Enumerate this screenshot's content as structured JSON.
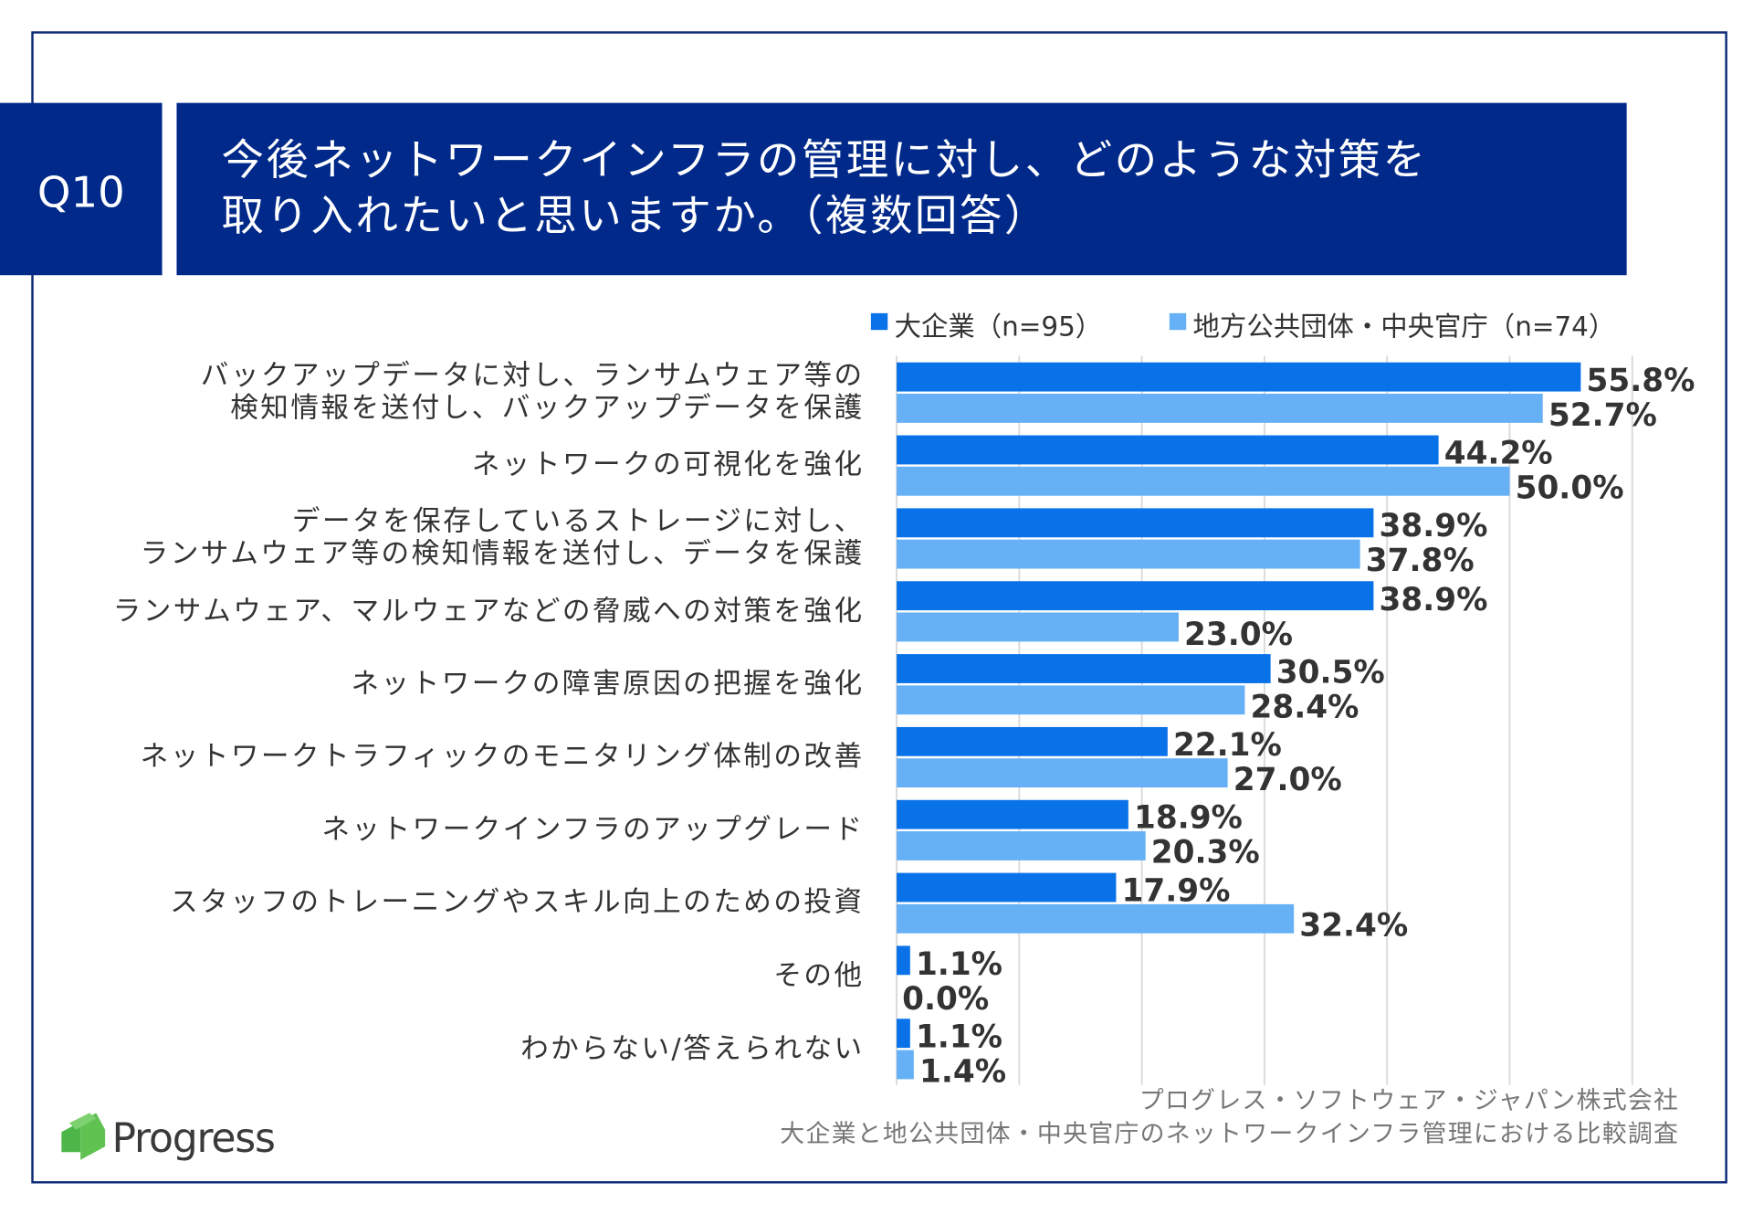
{
  "header": {
    "question": "Q10",
    "title": "今後ネットワークインフラの管理に対し、どのような対策を\n取り入れたいと思いますか。（複数回答）"
  },
  "chart_data": {
    "type": "bar",
    "orientation": "horizontal",
    "categories": [
      "バックアップデータに対し、ランサムウェア等の\n検知情報を送付し、バックアップデータを保護",
      "ネットワークの可視化を強化",
      "データを保存しているストレージに対し、\nランサムウェア等の検知情報を送付し、データを保護",
      "ランサムウェア、マルウェアなどの脅威への対策を強化",
      "ネットワークの障害原因の把握を強化",
      "ネットワークトラフィックのモニタリング体制の改善",
      "ネットワークインフラのアップグレード",
      "スタッフのトレーニングやスキル向上のための投資",
      "その他",
      "わからない/答えられない"
    ],
    "series": [
      {
        "name": "大企業（n=95）",
        "color": "#0a72e8",
        "values": [
          55.8,
          44.2,
          38.9,
          38.9,
          30.5,
          22.1,
          18.9,
          17.9,
          1.1,
          1.1
        ],
        "value_labels": [
          "55.8%",
          "44.2%",
          "38.9%",
          "38.9%",
          "30.5%",
          "22.1%",
          "18.9%",
          "17.9%",
          "1.1%",
          "1.1%"
        ]
      },
      {
        "name": "地方公共団体・中央官庁（n=74）",
        "color": "#66b0f6",
        "values": [
          52.7,
          50.0,
          37.8,
          23.0,
          28.4,
          27.0,
          20.3,
          32.4,
          0.0,
          1.4
        ],
        "value_labels": [
          "52.7%",
          "50.0%",
          "37.8%",
          "23.0%",
          "28.4%",
          "27.0%",
          "20.3%",
          "32.4%",
          "0.0%",
          "1.4%"
        ]
      }
    ],
    "xlim": [
      0,
      60
    ],
    "xticks": [
      0,
      10,
      20,
      30,
      40,
      50,
      60
    ],
    "grid": true,
    "legend": "top"
  },
  "footer": {
    "source": [
      "プログレス・ソフトウェア・ジャパン株式会社",
      "大企業と地公共団体・中央官庁のネットワークインフラ管理における比較調査"
    ],
    "logo": "Progress"
  }
}
